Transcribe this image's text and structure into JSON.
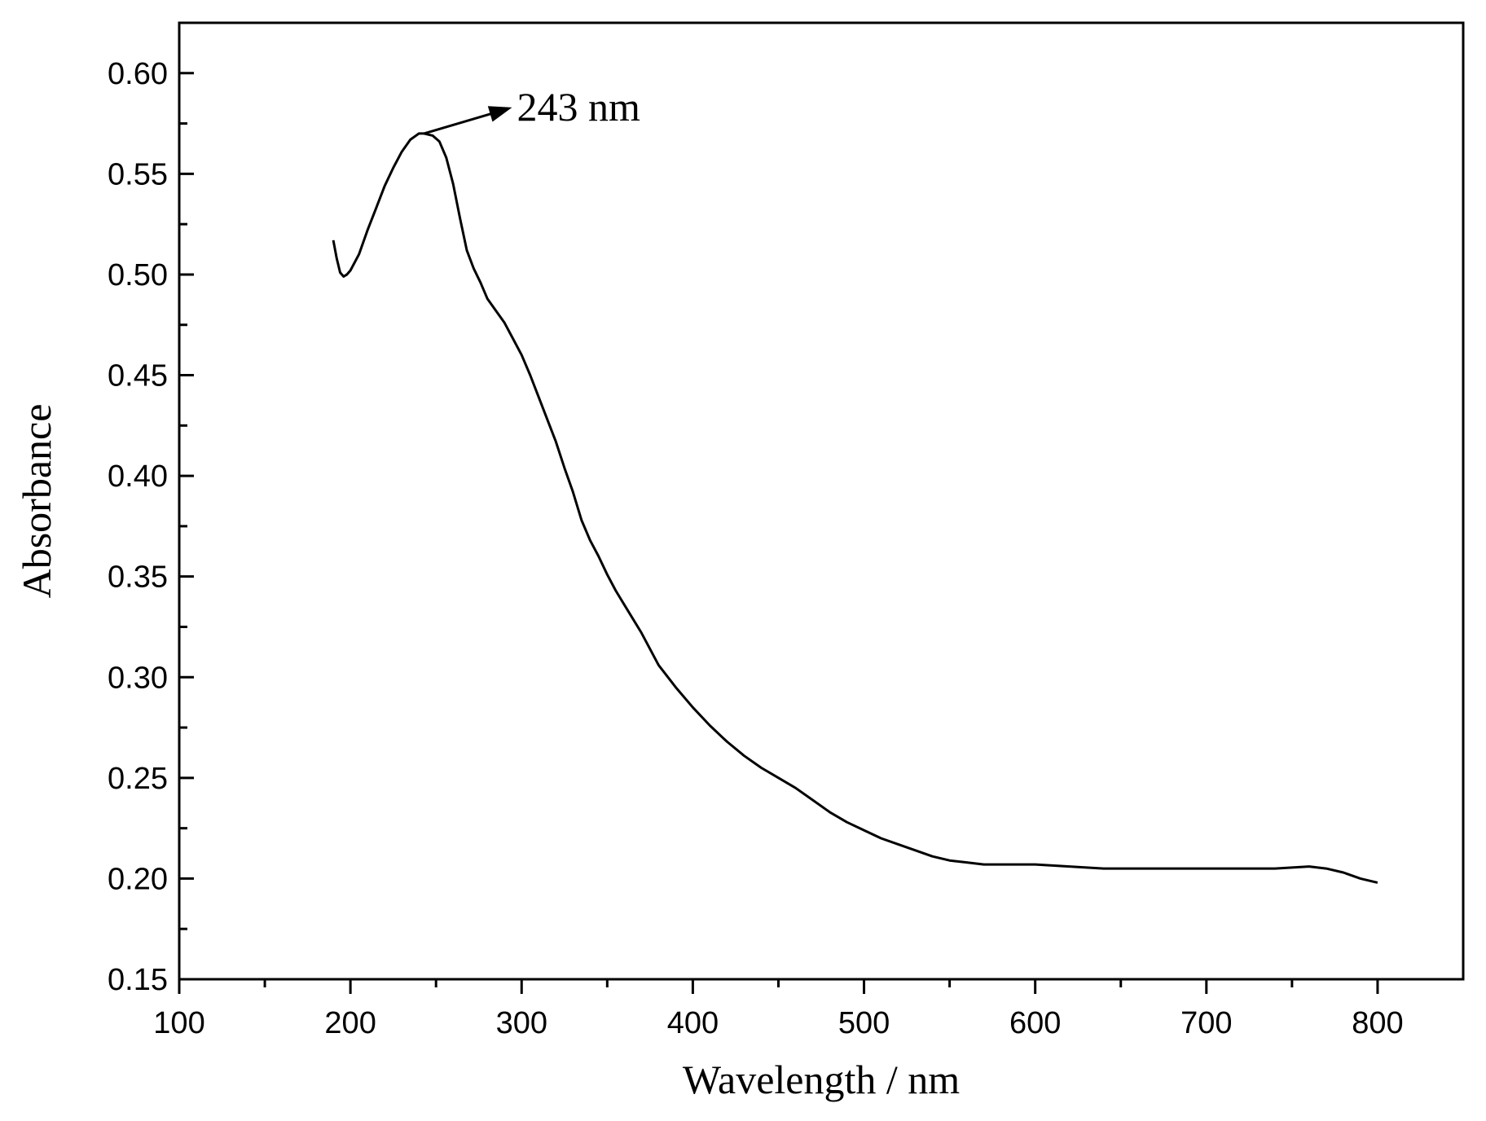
{
  "chart_data": {
    "type": "line",
    "title": "",
    "xlabel": "Wavelength / nm",
    "ylabel": "Absorbance",
    "xlim": [
      100,
      850
    ],
    "ylim": [
      0.15,
      0.625
    ],
    "x_ticks": [
      100,
      200,
      300,
      400,
      500,
      600,
      700,
      800
    ],
    "x_tick_labels": [
      "100",
      "200",
      "300",
      "400",
      "500",
      "600",
      "700",
      "800"
    ],
    "y_ticks": [
      0.15,
      0.2,
      0.25,
      0.3,
      0.35,
      0.4,
      0.45,
      0.5,
      0.55,
      0.6
    ],
    "y_tick_labels": [
      "0.15",
      "0.20",
      "0.25",
      "0.30",
      "0.35",
      "0.40",
      "0.45",
      "0.50",
      "0.55",
      "0.60"
    ],
    "grid": false,
    "legend": "none",
    "line_color": "#000000",
    "series": [
      {
        "x": [
          190,
          192,
          194,
          196,
          198,
          200,
          205,
          210,
          215,
          220,
          225,
          230,
          235,
          240,
          243,
          248,
          252,
          256,
          260,
          264,
          268,
          272,
          276,
          280,
          285,
          290,
          295,
          300,
          305,
          310,
          315,
          320,
          325,
          330,
          335,
          340,
          345,
          350,
          355,
          360,
          370,
          380,
          390,
          400,
          410,
          420,
          430,
          440,
          450,
          460,
          470,
          480,
          490,
          500,
          510,
          520,
          530,
          540,
          550,
          560,
          570,
          580,
          590,
          600,
          620,
          640,
          660,
          680,
          700,
          720,
          740,
          760,
          770,
          780,
          790,
          800
        ],
        "y": [
          0.517,
          0.508,
          0.501,
          0.499,
          0.5,
          0.502,
          0.51,
          0.522,
          0.533,
          0.544,
          0.553,
          0.561,
          0.567,
          0.57,
          0.57,
          0.569,
          0.566,
          0.558,
          0.545,
          0.528,
          0.512,
          0.503,
          0.496,
          0.488,
          0.482,
          0.476,
          0.468,
          0.46,
          0.45,
          0.439,
          0.428,
          0.417,
          0.404,
          0.392,
          0.378,
          0.368,
          0.36,
          0.351,
          0.343,
          0.336,
          0.322,
          0.306,
          0.295,
          0.285,
          0.276,
          0.268,
          0.261,
          0.255,
          0.25,
          0.245,
          0.239,
          0.233,
          0.228,
          0.224,
          0.22,
          0.217,
          0.214,
          0.211,
          0.209,
          0.208,
          0.207,
          0.207,
          0.207,
          0.207,
          0.206,
          0.205,
          0.205,
          0.205,
          0.205,
          0.205,
          0.205,
          0.206,
          0.205,
          0.203,
          0.2,
          0.198
        ]
      }
    ],
    "annotations": [
      {
        "text": "243 nm",
        "x": 243,
        "y": 0.57,
        "arrow": true
      }
    ]
  }
}
